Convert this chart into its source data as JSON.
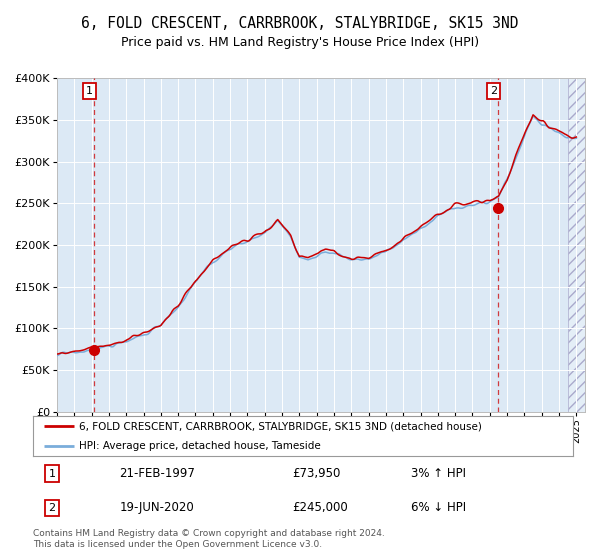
{
  "title": "6, FOLD CRESCENT, CARRBROOK, STALYBRIDGE, SK15 3ND",
  "subtitle": "Price paid vs. HM Land Registry's House Price Index (HPI)",
  "xlim_start": 1995.0,
  "xlim_end": 2025.5,
  "ylim_min": 0,
  "ylim_max": 400000,
  "yticks": [
    0,
    50000,
    100000,
    150000,
    200000,
    250000,
    300000,
    350000,
    400000
  ],
  "ytick_labels": [
    "£0",
    "£50K",
    "£100K",
    "£150K",
    "£200K",
    "£250K",
    "£300K",
    "£350K",
    "£400K"
  ],
  "xticks": [
    1995,
    1996,
    1997,
    1998,
    1999,
    2000,
    2001,
    2002,
    2003,
    2004,
    2005,
    2006,
    2007,
    2008,
    2009,
    2010,
    2011,
    2012,
    2013,
    2014,
    2015,
    2016,
    2017,
    2018,
    2019,
    2020,
    2021,
    2022,
    2023,
    2024,
    2025
  ],
  "sale1_x": 1997.13,
  "sale1_y": 73950,
  "sale2_x": 2020.47,
  "sale2_y": 245000,
  "legend_line1": "6, FOLD CRESCENT, CARRBROOK, STALYBRIDGE, SK15 3ND (detached house)",
  "legend_line2": "HPI: Average price, detached house, Tameside",
  "table_row1_date": "21-FEB-1997",
  "table_row1_price": "£73,950",
  "table_row1_hpi": "3% ↑ HPI",
  "table_row2_date": "19-JUN-2020",
  "table_row2_price": "£245,000",
  "table_row2_hpi": "6% ↓ HPI",
  "footer": "Contains HM Land Registry data © Crown copyright and database right 2024.\nThis data is licensed under the Open Government Licence v3.0.",
  "bg_color": "#dce9f5",
  "line_red": "#cc0000",
  "line_blue": "#7aadda",
  "hatch_start": 2024.5,
  "anchor_t": [
    1995.0,
    1996.0,
    1997.0,
    1998.0,
    1999.0,
    2000.0,
    2001.0,
    2002.0,
    2003.0,
    2004.0,
    2005.0,
    2006.0,
    2007.0,
    2007.75,
    2008.5,
    2009.0,
    2009.5,
    2010.0,
    2010.5,
    2011.0,
    2012.0,
    2013.0,
    2014.0,
    2015.0,
    2016.0,
    2017.0,
    2018.0,
    2019.0,
    2020.0,
    2020.5,
    2021.0,
    2021.5,
    2022.0,
    2022.5,
    2023.0,
    2023.5,
    2024.0,
    2024.5,
    2025.0
  ],
  "anchor_v": [
    68000,
    71000,
    74000,
    78000,
    84000,
    93000,
    103000,
    125000,
    155000,
    180000,
    195000,
    205000,
    215000,
    228000,
    210000,
    185000,
    182000,
    188000,
    192000,
    190000,
    182000,
    183000,
    192000,
    205000,
    220000,
    235000,
    245000,
    250000,
    252000,
    258000,
    278000,
    305000,
    330000,
    355000,
    345000,
    340000,
    335000,
    330000,
    328000
  ]
}
